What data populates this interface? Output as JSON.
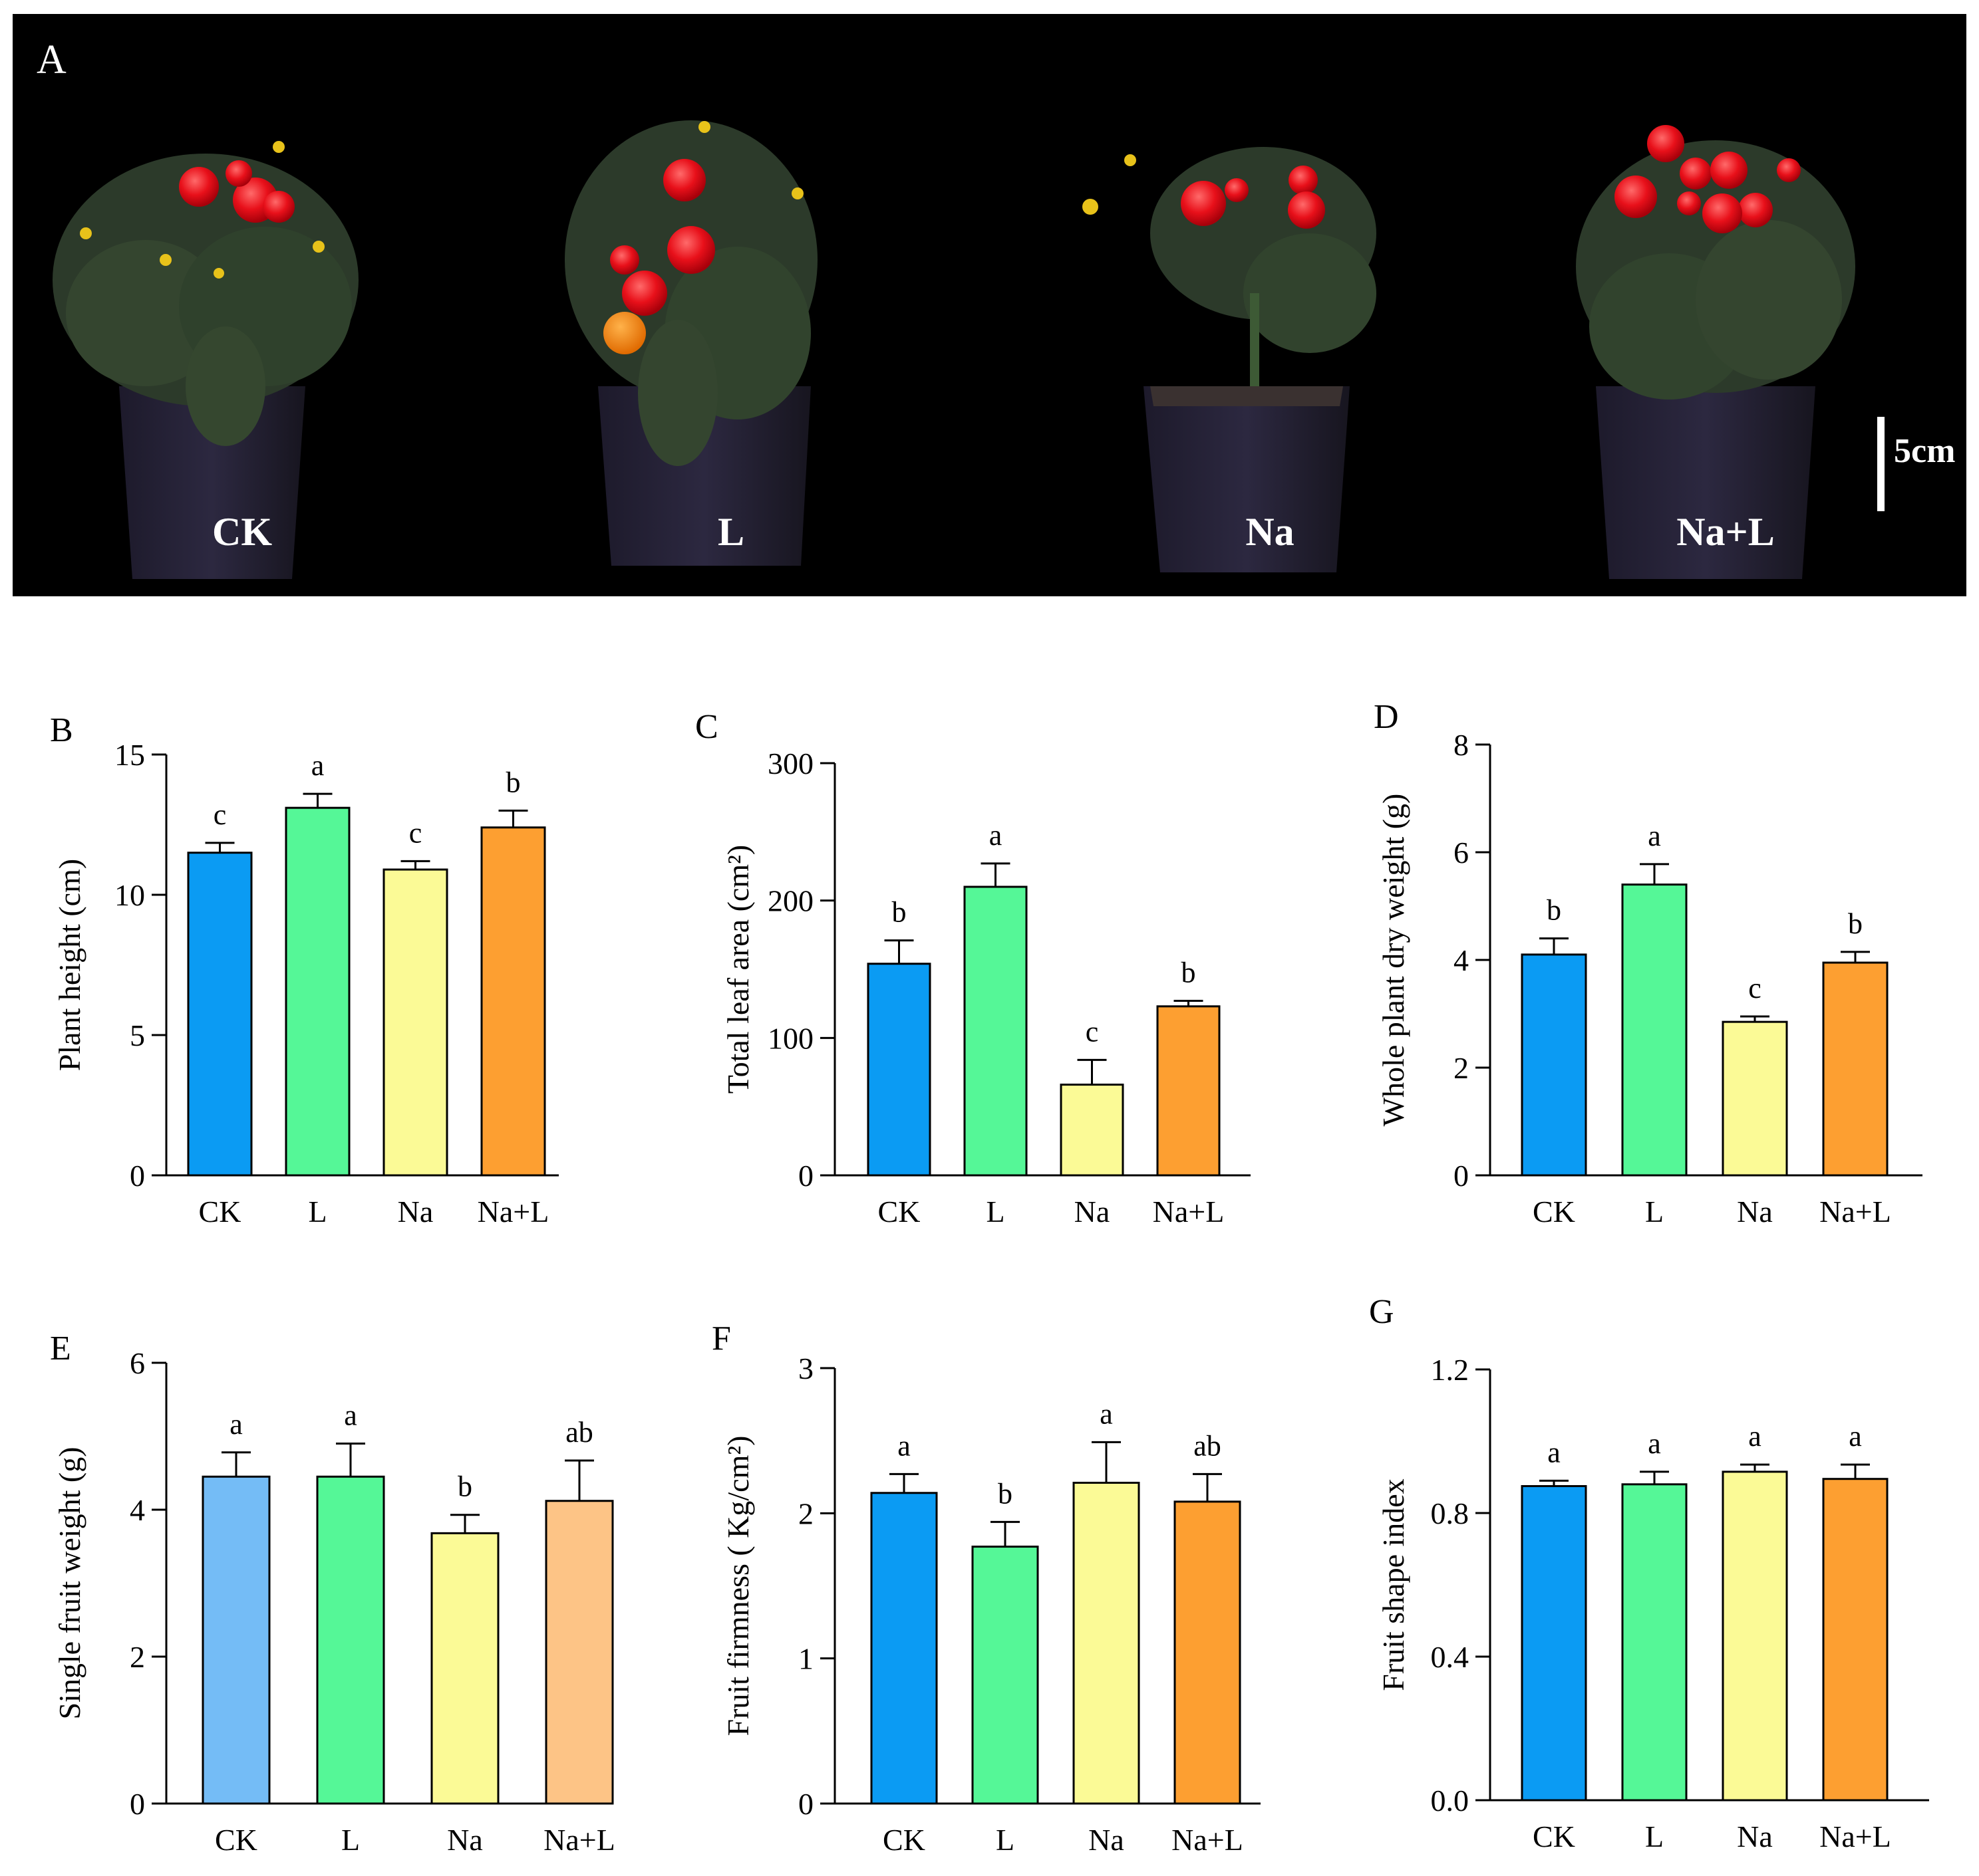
{
  "photo_panel": {
    "panel_letter": "A",
    "plant_labels": [
      "CK",
      "L",
      "Na",
      "Na+L"
    ],
    "scale_bar_label": "5cm"
  },
  "colors": {
    "CK": "#0b9bf3",
    "L": "#55f797",
    "Na": "#fbfa96",
    "Na+L": "#fd9f31",
    "CK_light": "#74bcf6",
    "Na+L_light": "#fdc486"
  },
  "chart_data": [
    {
      "panel": "B",
      "type": "bar",
      "title": "",
      "categories": [
        "CK",
        "L",
        "Na",
        "Na+L"
      ],
      "values": [
        11.5,
        13.1,
        10.9,
        12.4
      ],
      "errors": [
        0.35,
        0.5,
        0.3,
        0.6
      ],
      "sig_letters": [
        "c",
        "a",
        "c",
        "b"
      ],
      "xlabel": "",
      "ylabel": "Plant height (cm)",
      "ylim": [
        0,
        15
      ],
      "yticks": [
        0,
        5,
        10,
        15
      ],
      "ytick_labels": [
        "0",
        "5",
        "10",
        "15"
      ],
      "bar_colors": [
        "#0b9bf3",
        "#55f797",
        "#fbfa96",
        "#fd9f31"
      ]
    },
    {
      "panel": "C",
      "type": "bar",
      "title": "",
      "categories": [
        "CK",
        "L",
        "Na",
        "Na+L"
      ],
      "values": [
        154,
        210,
        66,
        123
      ],
      "errors": [
        17,
        17,
        18,
        4
      ],
      "sig_letters": [
        "b",
        "a",
        "c",
        "b"
      ],
      "xlabel": "",
      "ylabel": "Total leaf area (cm²)",
      "ylim": [
        0,
        300
      ],
      "yticks": [
        0,
        100,
        200,
        300
      ],
      "ytick_labels": [
        "0",
        "100",
        "200",
        "300"
      ],
      "bar_colors": [
        "#0b9bf3",
        "#55f797",
        "#fbfa96",
        "#fd9f31"
      ]
    },
    {
      "panel": "D",
      "type": "bar",
      "title": "",
      "categories": [
        "CK",
        "L",
        "Na",
        "Na+L"
      ],
      "values": [
        4.1,
        5.4,
        2.85,
        3.95
      ],
      "errors": [
        0.3,
        0.38,
        0.1,
        0.2
      ],
      "sig_letters": [
        "b",
        "a",
        "c",
        "b"
      ],
      "xlabel": "",
      "ylabel": "Whole plant dry weight (g)",
      "ylim": [
        0,
        8
      ],
      "yticks": [
        0,
        2,
        4,
        6,
        8
      ],
      "ytick_labels": [
        "0",
        "2",
        "4",
        "6",
        "8"
      ],
      "bar_colors": [
        "#0b9bf3",
        "#55f797",
        "#fbfa96",
        "#fd9f31"
      ]
    },
    {
      "panel": "E",
      "type": "bar",
      "title": "",
      "categories": [
        "CK",
        "L",
        "Na",
        "Na+L"
      ],
      "values": [
        4.45,
        4.45,
        3.68,
        4.12
      ],
      "errors": [
        0.33,
        0.45,
        0.25,
        0.55
      ],
      "sig_letters": [
        "a",
        "a",
        "b",
        "ab"
      ],
      "xlabel": "",
      "ylabel": "Single fruit weight (g)",
      "ylim": [
        0,
        6
      ],
      "yticks": [
        0,
        2,
        4,
        6
      ],
      "ytick_labels": [
        "0",
        "2",
        "4",
        "6"
      ],
      "bar_colors": [
        "#74bcf6",
        "#55f797",
        "#fbfa96",
        "#fdc486"
      ]
    },
    {
      "panel": "F",
      "type": "bar",
      "title": "",
      "categories": [
        "CK",
        "L",
        "Na",
        "Na+L"
      ],
      "values": [
        2.14,
        1.77,
        2.21,
        2.08
      ],
      "errors": [
        0.13,
        0.17,
        0.28,
        0.19
      ],
      "sig_letters": [
        "a",
        "b",
        "a",
        "ab"
      ],
      "xlabel": "",
      "ylabel": "Fruit firmness ( Kg/cm²)",
      "ylim": [
        0,
        3
      ],
      "yticks": [
        0,
        1,
        2,
        3
      ],
      "ytick_labels": [
        "0",
        "1",
        "2",
        "3"
      ],
      "bar_colors": [
        "#0b9bf3",
        "#55f797",
        "#fbfa96",
        "#fd9f31"
      ]
    },
    {
      "panel": "G",
      "type": "bar",
      "title": "",
      "categories": [
        "CK",
        "L",
        "Na",
        "Na+L"
      ],
      "values": [
        0.875,
        0.88,
        0.915,
        0.895
      ],
      "errors": [
        0.015,
        0.035,
        0.02,
        0.04
      ],
      "sig_letters": [
        "a",
        "a",
        "a",
        "a"
      ],
      "xlabel": "",
      "ylabel": "Fruit shape index",
      "ylim": [
        0,
        1.2
      ],
      "yticks": [
        0,
        0.4,
        0.8,
        1.2
      ],
      "ytick_labels": [
        "0.0",
        "0.4",
        "0.8",
        "1.2"
      ],
      "bar_colors": [
        "#0b9bf3",
        "#55f797",
        "#fbfa96",
        "#fd9f31"
      ]
    }
  ]
}
